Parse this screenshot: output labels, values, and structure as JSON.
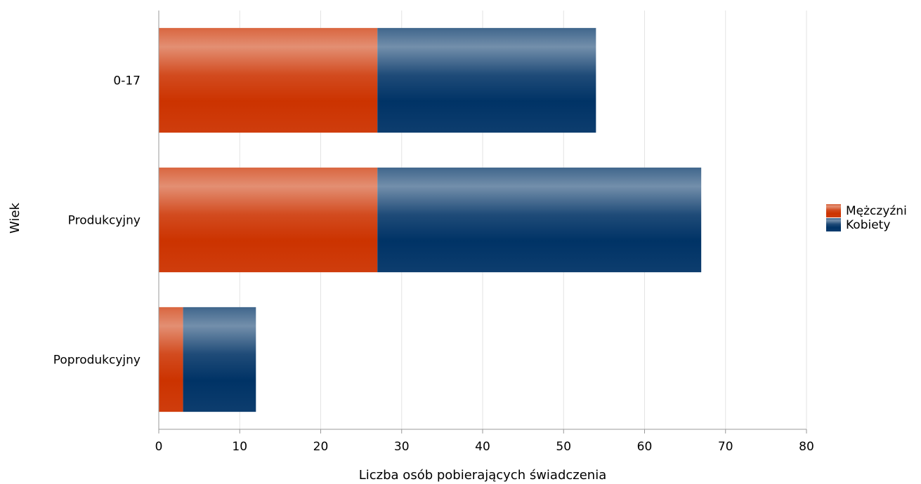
{
  "chart_data": {
    "type": "bar",
    "orientation": "horizontal",
    "stacked": true,
    "categories": [
      "0-17",
      "Produkcyjny",
      "Poprodukcyjny"
    ],
    "series": [
      {
        "name": "Mężczyźni",
        "values": [
          27,
          27,
          3
        ],
        "color": "#cc3300"
      },
      {
        "name": "Kobiety",
        "values": [
          27,
          40,
          9
        ],
        "color": "#003366"
      }
    ],
    "xlabel": "Liczba osób pobierających świadczenia",
    "ylabel": "Wiek",
    "xlim": [
      0,
      80
    ],
    "xticks": [
      "0",
      "10",
      "20",
      "30",
      "40",
      "50",
      "60",
      "70",
      "80"
    ],
    "grid": true,
    "legend_position": "right"
  }
}
